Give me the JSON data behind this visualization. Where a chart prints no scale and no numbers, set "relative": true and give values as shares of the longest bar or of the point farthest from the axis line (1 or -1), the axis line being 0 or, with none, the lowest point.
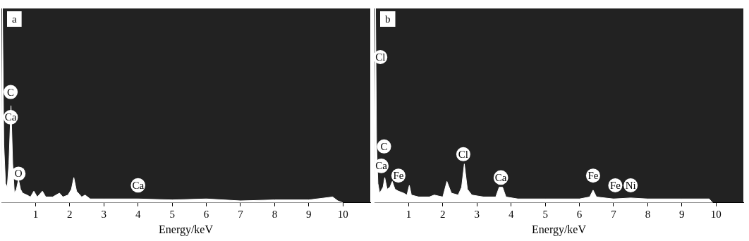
{
  "chart_data": [
    {
      "type": "area",
      "title": "a",
      "xlabel": "Energy/keV",
      "relative": true,
      "xlim": [
        0,
        10.8
      ],
      "xticks": [
        1,
        2,
        3,
        4,
        5,
        6,
        7,
        8,
        9,
        10
      ],
      "grid": false,
      "marker": "none",
      "series": [
        {
          "color": "#ffffff",
          "x": [
            0,
            0.03,
            0.07,
            0.12,
            0.17,
            0.22,
            0.28,
            0.33,
            0.38,
            0.44,
            0.5,
            0.56,
            0.62,
            0.75,
            0.85,
            0.95,
            1.05,
            1.2,
            1.3,
            1.5,
            1.7,
            1.8,
            1.95,
            2.05,
            2.12,
            2.2,
            2.35,
            2.45,
            2.6,
            3,
            4,
            5,
            6,
            7,
            8,
            9,
            9.7,
            9.85,
            10
          ],
          "values": [
            0.1,
            1,
            0.3,
            0.1,
            0.08,
            0.2,
            0.5,
            0.2,
            0.05,
            0.07,
            0.12,
            0.07,
            0.05,
            0.04,
            0.03,
            0.06,
            0.03,
            0.06,
            0.03,
            0.03,
            0.05,
            0.03,
            0.04,
            0.07,
            0.13,
            0.06,
            0.03,
            0.04,
            0.02,
            0.02,
            0.02,
            0.015,
            0.02,
            0.01,
            0.015,
            0.015,
            0.03,
            0.01,
            0
          ]
        }
      ],
      "annotations": [
        {
          "text": "C",
          "x": 0.27,
          "y": 0.57
        },
        {
          "text": "Ca",
          "x": 0.27,
          "y": 0.44
        },
        {
          "text": "O",
          "x": 0.5,
          "y": 0.15
        },
        {
          "text": "Ca",
          "x": 4,
          "y": 0.09
        }
      ]
    },
    {
      "type": "area",
      "title": "b",
      "xlabel": "Energy/keV",
      "relative": true,
      "xlim": [
        0,
        10.8
      ],
      "xticks": [
        1,
        2,
        3,
        4,
        5,
        6,
        7,
        8,
        9,
        10
      ],
      "grid": false,
      "marker": "none",
      "series": [
        {
          "color": "#ffffff",
          "x": [
            0,
            0.03,
            0.06,
            0.1,
            0.15,
            0.25,
            0.3,
            0.37,
            0.45,
            0.52,
            0.6,
            0.7,
            0.85,
            0.95,
            1.02,
            1.08,
            1.3,
            1.6,
            1.75,
            2,
            2.12,
            2.25,
            2.45,
            2.55,
            2.63,
            2.72,
            2.85,
            3.2,
            3.55,
            3.65,
            3.75,
            3.85,
            4.2,
            5,
            6,
            6.3,
            6.4,
            6.5,
            7,
            7.5,
            8,
            9,
            9.8,
            9.9
          ],
          "values": [
            0.1,
            1,
            0.3,
            0.1,
            0.05,
            0.08,
            0.13,
            0.07,
            0.08,
            0.11,
            0.07,
            0.06,
            0.05,
            0.04,
            0.09,
            0.04,
            0.03,
            0.03,
            0.04,
            0.03,
            0.11,
            0.05,
            0.04,
            0.08,
            0.2,
            0.07,
            0.04,
            0.03,
            0.03,
            0.08,
            0.08,
            0.03,
            0.02,
            0.02,
            0.02,
            0.03,
            0.065,
            0.03,
            0.02,
            0.025,
            0.02,
            0.02,
            0.02,
            0
          ]
        }
      ],
      "annotations": [
        {
          "text": "Cl",
          "x": 0.17,
          "y": 0.75
        },
        {
          "text": "C",
          "x": 0.28,
          "y": 0.29
        },
        {
          "text": "Ca",
          "x": 0.2,
          "y": 0.19
        },
        {
          "text": "Fe",
          "x": 0.7,
          "y": 0.14
        },
        {
          "text": "Cl",
          "x": 2.6,
          "y": 0.25
        },
        {
          "text": "Ca",
          "x": 3.7,
          "y": 0.13
        },
        {
          "text": "Fe",
          "x": 6.4,
          "y": 0.14
        },
        {
          "text": "Fe",
          "x": 7.05,
          "y": 0.09
        },
        {
          "text": "Ni",
          "x": 7.5,
          "y": 0.09
        }
      ]
    }
  ]
}
